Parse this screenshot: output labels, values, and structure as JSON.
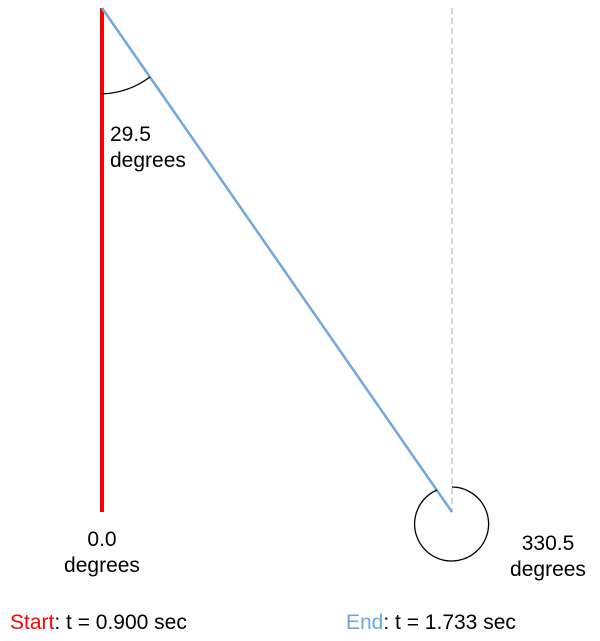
{
  "colors": {
    "start_line": "#ff0000",
    "end_line": "#6fa8dc",
    "reference_line": "#c8c8c8",
    "arc": "#000000"
  },
  "angles": {
    "start": {
      "value": "0.0",
      "unit": "degrees"
    },
    "between": {
      "value": "29.5",
      "unit": "degrees"
    },
    "end": {
      "value": "330.5",
      "unit": "degrees"
    }
  },
  "footer": {
    "start": {
      "label": "Start",
      "text": ": t = 0.900 sec"
    },
    "end": {
      "label": "End",
      "text": ": t = 1.733 sec"
    }
  }
}
